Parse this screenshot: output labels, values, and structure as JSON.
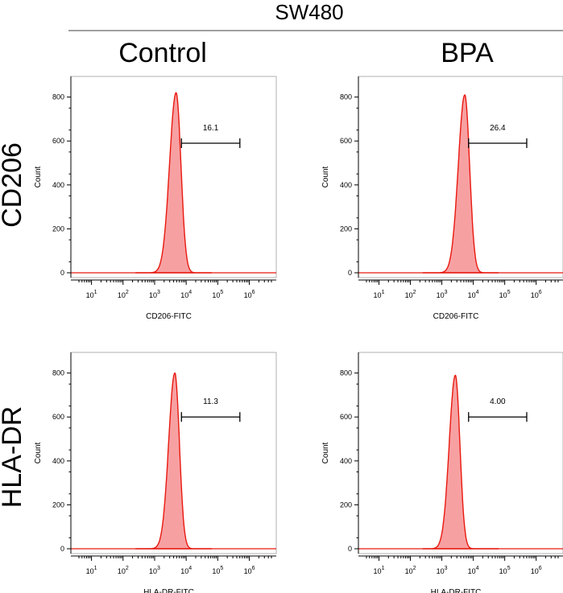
{
  "figure": {
    "title": "SW480",
    "column_labels": [
      "Control",
      "BPA"
    ],
    "row_labels": [
      "CD206",
      "HLA-DR"
    ],
    "colors": {
      "fill": "#f7a0a2",
      "line": "#e8190f",
      "frame": "#b0b0b0"
    }
  },
  "chart_data": [
    {
      "type": "histogram",
      "panel": "CD206 Control",
      "ylabel": "Count",
      "xlabel": "CD206-FITC",
      "ylim": [
        0,
        850
      ],
      "y_ticks": [
        0,
        200,
        400,
        600,
        800
      ],
      "x_scale": "log",
      "x_ticks": [
        "10^1",
        "10^2",
        "10^3",
        "10^4",
        "10^5",
        "10^6"
      ],
      "gate": {
        "label": "16.1",
        "x_range_log": [
          3.85,
          5.7
        ],
        "y": 590
      },
      "peak": {
        "x_log": 3.68,
        "count": 820,
        "sigma_log": 0.18
      }
    },
    {
      "type": "histogram",
      "panel": "CD206 BPA",
      "ylabel": "Count",
      "xlabel": "CD206-FITC",
      "ylim": [
        0,
        850
      ],
      "y_ticks": [
        0,
        200,
        400,
        600,
        800
      ],
      "x_scale": "log",
      "x_ticks": [
        "10^1",
        "10^2",
        "10^3",
        "10^4",
        "10^5",
        "10^6"
      ],
      "gate": {
        "label": "26.4",
        "x_range_log": [
          3.85,
          5.7
        ],
        "y": 590
      },
      "peak": {
        "x_log": 3.73,
        "count": 810,
        "sigma_log": 0.18
      }
    },
    {
      "type": "histogram",
      "panel": "HLA-DR Control",
      "ylabel": "Count",
      "xlabel": "HLA-DR-FITC",
      "ylim": [
        0,
        850
      ],
      "y_ticks": [
        0,
        200,
        400,
        600,
        800
      ],
      "x_scale": "log",
      "x_ticks": [
        "10^1",
        "10^2",
        "10^3",
        "10^4",
        "10^5",
        "10^6"
      ],
      "gate": {
        "label": "11.3",
        "x_range_log": [
          3.85,
          5.7
        ],
        "y": 600
      },
      "peak": {
        "x_log": 3.64,
        "count": 800,
        "sigma_log": 0.17
      }
    },
    {
      "type": "histogram",
      "panel": "HLA-DR BPA",
      "ylabel": "Count",
      "xlabel": "HLA-DR-FITC",
      "ylim": [
        0,
        850
      ],
      "y_ticks": [
        0,
        200,
        400,
        600,
        800
      ],
      "x_scale": "log",
      "x_ticks": [
        "10^1",
        "10^2",
        "10^3",
        "10^4",
        "10^5",
        "10^6"
      ],
      "gate": {
        "label": "4.00",
        "x_range_log": [
          3.85,
          5.7
        ],
        "y": 600
      },
      "peak": {
        "x_log": 3.43,
        "count": 790,
        "sigma_log": 0.17
      }
    }
  ]
}
